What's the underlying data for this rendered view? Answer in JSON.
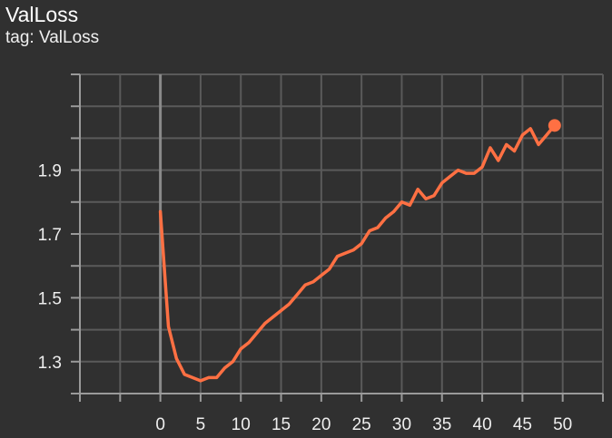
{
  "title": "ValLoss",
  "subtitle": "tag: ValLoss",
  "colors": {
    "background": "#303030",
    "grid": "#5a5a5a",
    "axis": "#9a9a9a",
    "zero_line": "#8a8a8a",
    "series": "#ff7043"
  },
  "chart_data": {
    "type": "line",
    "title": "ValLoss",
    "subtitle": "tag: ValLoss",
    "xlabel": "",
    "ylabel": "",
    "xlim": [
      -10,
      55
    ],
    "ylim": [
      1.2,
      2.2
    ],
    "x_ticks": [
      0,
      5,
      10,
      15,
      20,
      25,
      30,
      35,
      40,
      45,
      50
    ],
    "y_ticks": [
      1.3,
      1.5,
      1.7,
      1.9
    ],
    "y_tick_labels": [
      "1.3",
      "1.5",
      "1.7",
      "1.9"
    ],
    "grid": true,
    "series": [
      {
        "x": [
          0,
          1,
          2,
          3,
          4,
          5,
          6,
          7,
          8,
          9,
          10,
          11,
          12,
          13,
          14,
          15,
          16,
          17,
          18,
          19,
          20,
          21,
          22,
          23,
          24,
          25,
          26,
          27,
          28,
          29,
          30,
          31,
          32,
          33,
          34,
          35,
          36,
          37,
          38,
          39,
          40,
          41,
          42,
          43,
          44,
          45,
          46,
          47,
          48,
          49
        ],
        "y": [
          1.77,
          1.41,
          1.31,
          1.26,
          1.25,
          1.24,
          1.25,
          1.25,
          1.28,
          1.3,
          1.34,
          1.36,
          1.39,
          1.42,
          1.44,
          1.46,
          1.48,
          1.51,
          1.54,
          1.55,
          1.57,
          1.59,
          1.63,
          1.64,
          1.65,
          1.67,
          1.71,
          1.72,
          1.75,
          1.77,
          1.8,
          1.79,
          1.84,
          1.81,
          1.82,
          1.86,
          1.88,
          1.9,
          1.89,
          1.89,
          1.91,
          1.97,
          1.93,
          1.98,
          1.96,
          2.01,
          2.03,
          1.98,
          2.01,
          2.04
        ],
        "last_point_marker": true
      }
    ]
  }
}
